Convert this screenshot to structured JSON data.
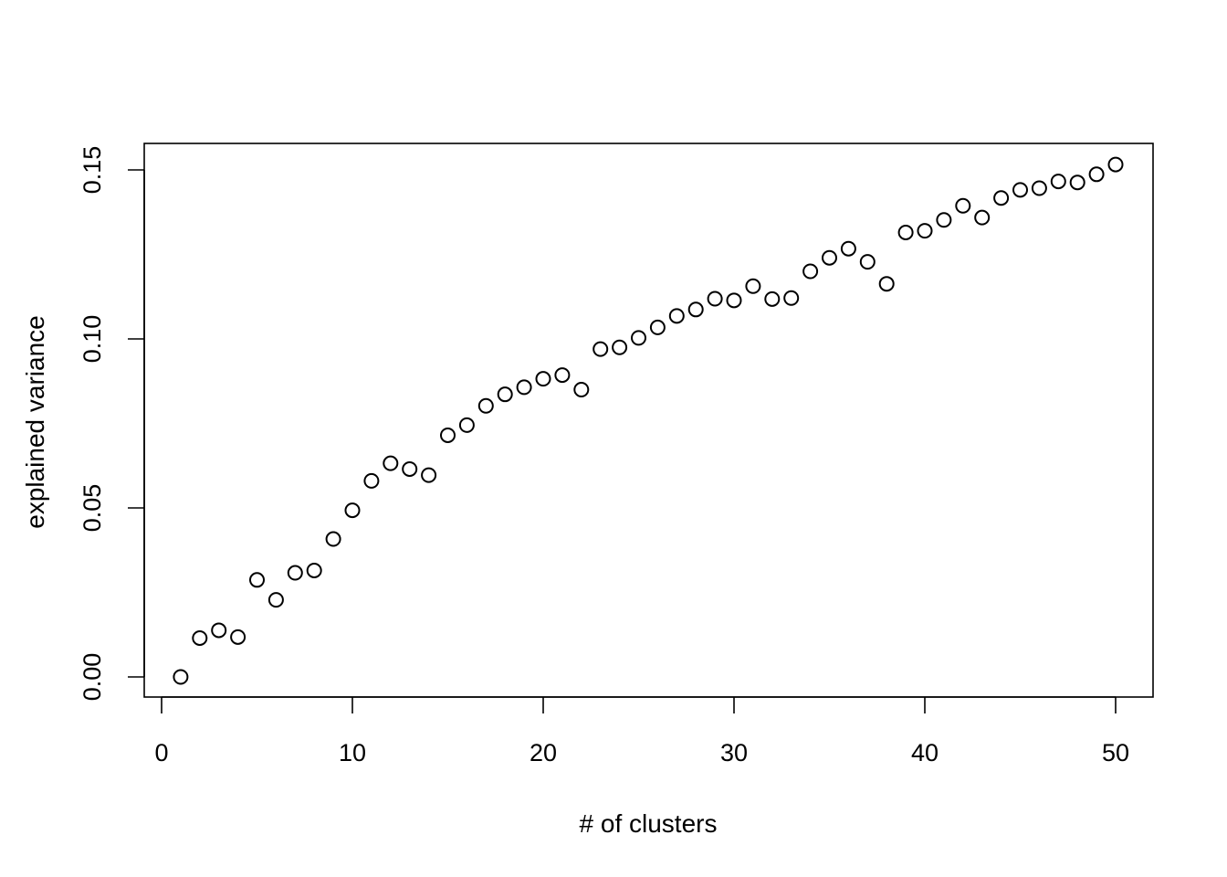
{
  "chart_data": {
    "type": "scatter",
    "title": "",
    "xlabel": "# of clusters",
    "ylabel": "explained variance",
    "xlim": [
      0,
      50
    ],
    "ylim": [
      0,
      0.15
    ],
    "x_ticks": [
      "0",
      "10",
      "20",
      "30",
      "40",
      "50"
    ],
    "y_ticks": [
      "0.00",
      "0.05",
      "0.10",
      "0.15"
    ],
    "grid": false,
    "legend": "none",
    "marker": "open-circle",
    "series": [
      {
        "x": [
          1,
          2,
          3,
          4,
          5,
          6,
          7,
          8,
          9,
          10,
          11,
          12,
          13,
          14,
          15,
          16,
          17,
          18,
          19,
          20,
          21,
          22,
          23,
          24,
          25,
          26,
          27,
          28,
          29,
          30,
          31,
          32,
          33,
          34,
          35,
          36,
          37,
          38,
          39,
          40,
          41,
          42,
          43,
          44,
          45,
          46,
          47,
          48,
          49,
          50
        ],
        "y": [
          0.0,
          0.0115,
          0.0138,
          0.0118,
          0.0287,
          0.0228,
          0.0308,
          0.0315,
          0.0408,
          0.0493,
          0.058,
          0.0632,
          0.0615,
          0.0597,
          0.0715,
          0.0745,
          0.0802,
          0.0836,
          0.0857,
          0.0882,
          0.0893,
          0.085,
          0.097,
          0.0975,
          0.1003,
          0.1034,
          0.1068,
          0.1087,
          0.1119,
          0.1114,
          0.1156,
          0.1118,
          0.1121,
          0.12,
          0.124,
          0.1267,
          0.1228,
          0.1163,
          0.1315,
          0.132,
          0.1352,
          0.1394,
          0.1359,
          0.1417,
          0.1441,
          0.1446,
          0.1466,
          0.1463,
          0.1487,
          0.1516
        ]
      }
    ]
  }
}
